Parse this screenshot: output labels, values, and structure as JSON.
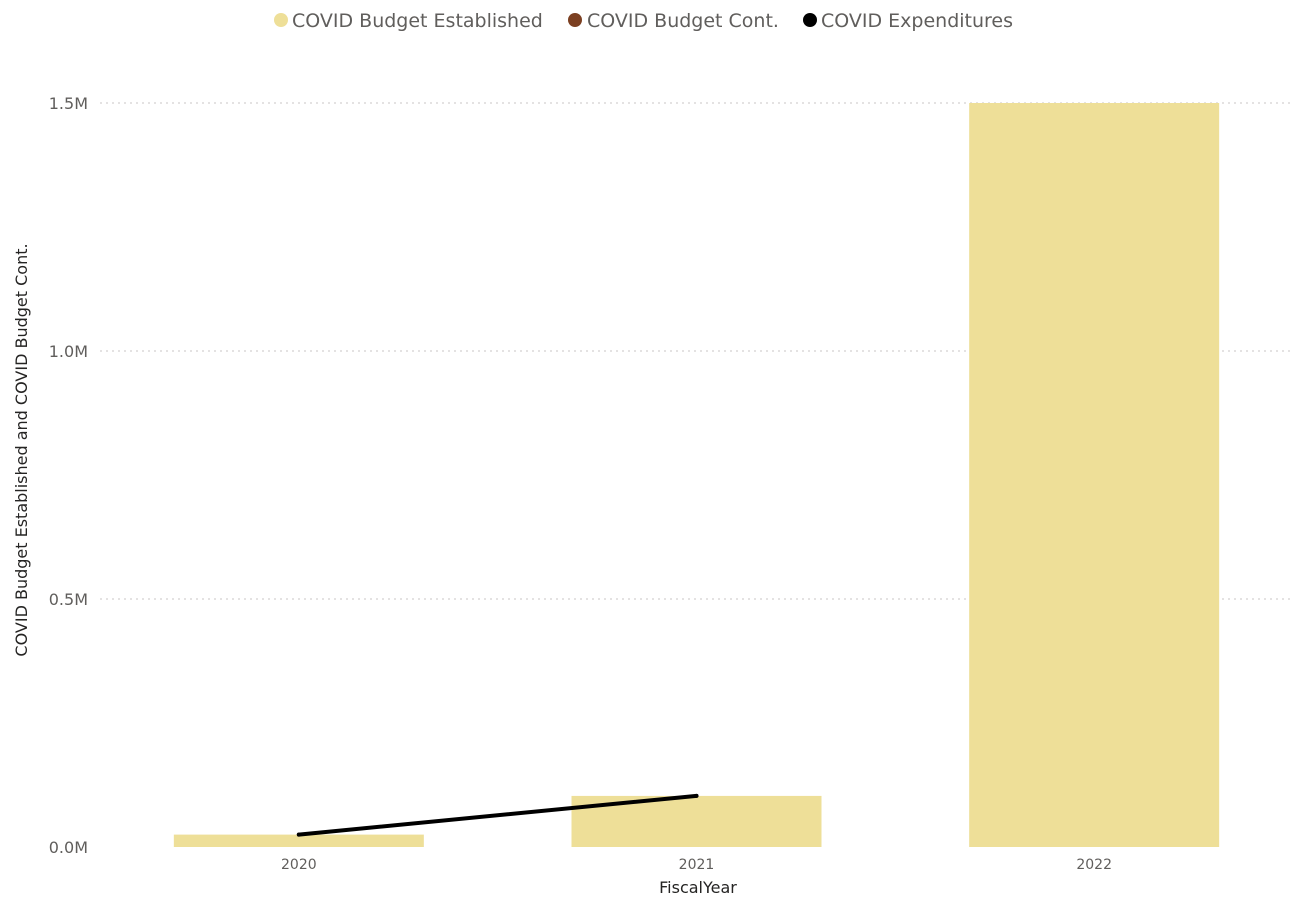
{
  "chart_data": {
    "type": "bar",
    "categories": [
      "2020",
      "2021",
      "2022"
    ],
    "series": [
      {
        "name": "COVID Budget Established",
        "kind": "bar",
        "color": "#eedf98",
        "values": [
          25000,
          103000,
          1500000
        ]
      },
      {
        "name": "COVID Budget Cont.",
        "kind": "bar",
        "color": "#7b3f21",
        "values": [
          0,
          0,
          0
        ]
      },
      {
        "name": "COVID Expenditures",
        "kind": "line",
        "color": "#000000",
        "values": [
          25000,
          103000,
          null
        ]
      }
    ],
    "xlabel": "FiscalYear",
    "ylabel": "COVID Budget Established and COVID Budget Cont.",
    "ylim": [
      0,
      1500000
    ],
    "yticks": [
      {
        "value": 0,
        "label": "0.0M"
      },
      {
        "value": 500000,
        "label": "0.5M"
      },
      {
        "value": 1000000,
        "label": "1.0M"
      },
      {
        "value": 1500000,
        "label": "1.5M"
      }
    ],
    "legend_position": "top-center",
    "grid": true
  }
}
